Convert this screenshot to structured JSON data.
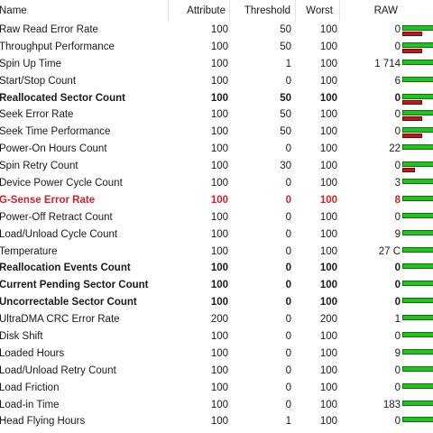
{
  "columns": {
    "name": "Name",
    "attribute": "Attribute",
    "threshold": "Threshold",
    "worst": "Worst",
    "raw": "RAW"
  },
  "colors": {
    "health_good": "#22c21f",
    "health_bad": "#c8141c",
    "alert_text": "#d51f26"
  },
  "rows": [
    {
      "name": "Raw Read Error Rate",
      "attribute": "100",
      "threshold": "50",
      "worst": "100",
      "raw": "0",
      "style": "normal",
      "red_fraction": 0.55
    },
    {
      "name": "Throughput Performance",
      "attribute": "100",
      "threshold": "50",
      "worst": "100",
      "raw": "0",
      "style": "normal",
      "red_fraction": 0.55
    },
    {
      "name": "Spin Up Time",
      "attribute": "100",
      "threshold": "1",
      "worst": "100",
      "raw": "1 714",
      "style": "normal",
      "red_fraction": 0
    },
    {
      "name": "Start/Stop Count",
      "attribute": "100",
      "threshold": "0",
      "worst": "100",
      "raw": "6",
      "style": "normal",
      "red_fraction": 0
    },
    {
      "name": "Reallocated Sector Count",
      "attribute": "100",
      "threshold": "50",
      "worst": "100",
      "raw": "0",
      "style": "bold",
      "red_fraction": 0.55
    },
    {
      "name": "Seek Error Rate",
      "attribute": "100",
      "threshold": "50",
      "worst": "100",
      "raw": "0",
      "style": "normal",
      "red_fraction": 0.55
    },
    {
      "name": "Seek Time Performance",
      "attribute": "100",
      "threshold": "50",
      "worst": "100",
      "raw": "0",
      "style": "normal",
      "red_fraction": 0.55
    },
    {
      "name": "Power-On Hours Count",
      "attribute": "100",
      "threshold": "0",
      "worst": "100",
      "raw": "22",
      "style": "normal",
      "red_fraction": 0
    },
    {
      "name": "Spin Retry Count",
      "attribute": "100",
      "threshold": "30",
      "worst": "100",
      "raw": "0",
      "style": "normal",
      "red_fraction": 0.35
    },
    {
      "name": "Device Power Cycle Count",
      "attribute": "100",
      "threshold": "0",
      "worst": "100",
      "raw": "3",
      "style": "normal",
      "red_fraction": 0
    },
    {
      "name": "G-Sense Error Rate",
      "attribute": "100",
      "threshold": "0",
      "worst": "100",
      "raw": "8",
      "style": "alert",
      "red_fraction": 0
    },
    {
      "name": "Power-Off Retract Count",
      "attribute": "100",
      "threshold": "0",
      "worst": "100",
      "raw": "0",
      "style": "normal",
      "red_fraction": 0
    },
    {
      "name": "Load/Unload Cycle Count",
      "attribute": "100",
      "threshold": "0",
      "worst": "100",
      "raw": "9",
      "style": "normal",
      "red_fraction": 0
    },
    {
      "name": "Temperature",
      "attribute": "100",
      "threshold": "0",
      "worst": "100",
      "raw": "27 C",
      "style": "normal",
      "red_fraction": 0
    },
    {
      "name": "Reallocation Events Count",
      "attribute": "100",
      "threshold": "0",
      "worst": "100",
      "raw": "0",
      "style": "bold",
      "red_fraction": 0
    },
    {
      "name": "Current Pending Sector Count",
      "attribute": "100",
      "threshold": "0",
      "worst": "100",
      "raw": "0",
      "style": "bold",
      "red_fraction": 0
    },
    {
      "name": "Uncorrectable Sector Count",
      "attribute": "100",
      "threshold": "0",
      "worst": "100",
      "raw": "0",
      "style": "bold",
      "red_fraction": 0
    },
    {
      "name": "UltraDMA CRC Error Rate",
      "attribute": "200",
      "threshold": "0",
      "worst": "200",
      "raw": "1",
      "style": "normal",
      "red_fraction": 0
    },
    {
      "name": "Disk Shift",
      "attribute": "100",
      "threshold": "0",
      "worst": "100",
      "raw": "0",
      "style": "normal",
      "red_fraction": 0
    },
    {
      "name": "Loaded Hours",
      "attribute": "100",
      "threshold": "0",
      "worst": "100",
      "raw": "9",
      "style": "normal",
      "red_fraction": 0
    },
    {
      "name": "Load/Unload Retry Count",
      "attribute": "100",
      "threshold": "0",
      "worst": "100",
      "raw": "0",
      "style": "normal",
      "red_fraction": 0
    },
    {
      "name": "Load Friction",
      "attribute": "100",
      "threshold": "0",
      "worst": "100",
      "raw": "0",
      "style": "normal",
      "red_fraction": 0
    },
    {
      "name": "Load-in Time",
      "attribute": "100",
      "threshold": "0",
      "worst": "100",
      "raw": "183",
      "style": "normal",
      "red_fraction": 0
    },
    {
      "name": "Head Flying Hours",
      "attribute": "100",
      "threshold": "1",
      "worst": "100",
      "raw": "0",
      "style": "normal",
      "red_fraction": 0
    }
  ]
}
